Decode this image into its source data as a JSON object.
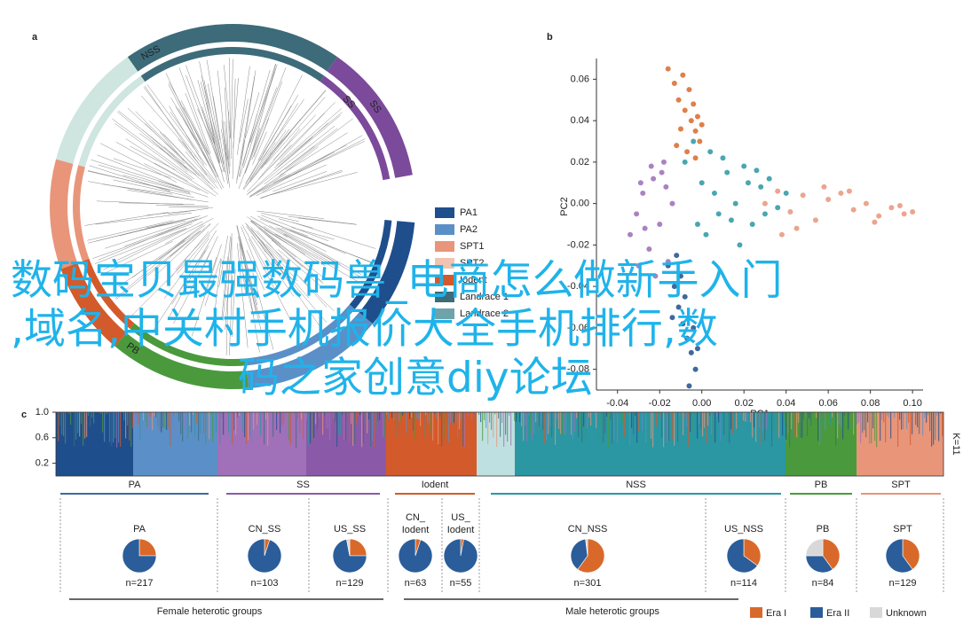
{
  "panel_a": {
    "letter": "a",
    "ring_labels": [
      "NSS",
      "SS",
      "SS",
      "PB"
    ],
    "legend": [
      {
        "label": "PA1",
        "color": "#1f4e8c"
      },
      {
        "label": "PA2",
        "color": "#5b8fc7"
      },
      {
        "label": "SPT1",
        "color": "#e8957a"
      },
      {
        "label": "SPT2",
        "color": "#f2c3b1"
      },
      {
        "label": "Iodent",
        "color": "#d35a2a"
      },
      {
        "label": "Landrace 1",
        "color": "#3d6b7a"
      },
      {
        "label": "Landrace 2",
        "color": "#6fa3ac"
      }
    ]
  },
  "panel_b": {
    "letter": "b"
  },
  "chart_data": [
    {
      "type": "scatter",
      "x_label": "PC1",
      "y_label": "PC2",
      "xlim": [
        -0.05,
        0.105
      ],
      "ylim": [
        -0.09,
        0.07
      ],
      "xticks": [
        {
          "value": -0.04,
          "label": "-0.04"
        },
        {
          "value": -0.02,
          "label": "-0.02"
        },
        {
          "value": 0,
          "label": "0.00"
        },
        {
          "value": 0.02,
          "label": "0.02"
        },
        {
          "value": 0.04,
          "label": "0.04"
        },
        {
          "value": 0.06,
          "label": "0.06"
        },
        {
          "value": 0.08,
          "label": "0.08"
        },
        {
          "value": 0.1,
          "label": "0.10"
        }
      ],
      "yticks": [
        {
          "value": -0.08,
          "label": "-0.08"
        },
        {
          "value": -0.06,
          "label": "-0.06"
        },
        {
          "value": -0.04,
          "label": "-0.04"
        },
        {
          "value": -0.02,
          "label": "-0.02"
        },
        {
          "value": 0,
          "label": "0.00"
        },
        {
          "value": 0.02,
          "label": "0.02"
        },
        {
          "value": 0.04,
          "label": "0.04"
        },
        {
          "value": 0.06,
          "label": "0.06"
        }
      ],
      "series": [
        {
          "color": "#d9692a",
          "x": [
            -0.016,
            -0.013,
            -0.011,
            -0.009,
            -0.008,
            -0.006,
            -0.005,
            -0.004,
            -0.003,
            -0.002,
            -0.001,
            0.0,
            -0.012,
            -0.007,
            -0.01,
            -0.003
          ],
          "values": [
            0.065,
            0.058,
            0.05,
            0.062,
            0.045,
            0.055,
            0.04,
            0.048,
            0.035,
            0.042,
            0.03,
            0.038,
            0.028,
            0.025,
            0.036,
            0.022
          ]
        },
        {
          "color": "#9b6cb8",
          "x": [
            -0.034,
            -0.031,
            -0.028,
            -0.025,
            -0.023,
            -0.02,
            -0.018,
            -0.016,
            -0.014,
            -0.03,
            -0.022,
            -0.019,
            -0.027,
            -0.017,
            -0.024,
            -0.029
          ],
          "values": [
            -0.015,
            -0.005,
            0.005,
            -0.022,
            0.012,
            -0.01,
            0.02,
            -0.028,
            0.0,
            -0.03,
            -0.035,
            0.015,
            -0.012,
            0.008,
            0.018,
            0.01
          ]
        },
        {
          "color": "#2a97a3",
          "x": [
            -0.008,
            -0.004,
            0.0,
            0.004,
            0.008,
            0.012,
            0.016,
            0.02,
            0.024,
            0.028,
            0.032,
            0.036,
            0.04,
            0.002,
            0.01,
            0.018,
            0.026,
            0.006,
            0.014,
            -0.002,
            0.022,
            0.03
          ],
          "values": [
            0.02,
            0.03,
            0.01,
            0.025,
            -0.005,
            0.015,
            0.0,
            0.018,
            -0.01,
            0.008,
            0.012,
            -0.002,
            0.005,
            -0.015,
            0.022,
            -0.02,
            0.016,
            0.005,
            -0.008,
            -0.01,
            0.01,
            -0.005
          ]
        },
        {
          "color": "#e8957a",
          "x": [
            0.03,
            0.036,
            0.042,
            0.048,
            0.054,
            0.06,
            0.066,
            0.072,
            0.078,
            0.084,
            0.09,
            0.096,
            0.1,
            0.045,
            0.058,
            0.07,
            0.082,
            0.038,
            0.094
          ],
          "values": [
            0.0,
            0.006,
            -0.004,
            0.004,
            -0.008,
            0.002,
            0.005,
            -0.003,
            0.0,
            -0.006,
            -0.002,
            -0.005,
            -0.004,
            -0.012,
            0.008,
            0.006,
            -0.009,
            -0.015,
            -0.001
          ]
        },
        {
          "color": "#1f4e8c",
          "x": [
            -0.016,
            -0.013,
            -0.011,
            -0.009,
            -0.007,
            -0.005,
            -0.003,
            -0.012,
            -0.008,
            -0.006,
            -0.004,
            -0.01,
            -0.002,
            -0.014
          ],
          "values": [
            -0.03,
            -0.04,
            -0.05,
            -0.058,
            -0.065,
            -0.072,
            -0.08,
            -0.025,
            -0.045,
            -0.088,
            -0.06,
            -0.035,
            -0.07,
            -0.055
          ]
        }
      ]
    },
    {
      "type": "pie",
      "title": [
        "PA"
      ],
      "note": "n=217",
      "values": [
        25,
        75,
        0
      ]
    },
    {
      "type": "pie",
      "title": [
        "CN_SS"
      ],
      "note": "n=103",
      "values": [
        5,
        95,
        0
      ]
    },
    {
      "type": "pie",
      "title": [
        "US_SS"
      ],
      "note": "n=129",
      "values": [
        25,
        72,
        3
      ]
    },
    {
      "type": "pie",
      "title": [
        "CN_",
        "Iodent"
      ],
      "note": "n=63",
      "values": [
        5,
        95,
        0
      ]
    },
    {
      "type": "pie",
      "title": [
        "US_",
        "Iodent"
      ],
      "note": "n=55",
      "values": [
        3,
        97,
        0
      ]
    },
    {
      "type": "pie",
      "title": [
        "CN_NSS"
      ],
      "note": "n=301",
      "values": [
        60,
        38,
        2
      ]
    },
    {
      "type": "pie",
      "title": [
        "US_NSS"
      ],
      "note": "n=114",
      "values": [
        35,
        65,
        0
      ]
    },
    {
      "type": "pie",
      "title": [
        "PB"
      ],
      "note": "n=84",
      "values": [
        40,
        35,
        25
      ]
    },
    {
      "type": "pie",
      "title": [
        "SPT"
      ],
      "note": "n=129",
      "values": [
        40,
        60,
        0
      ]
    }
  ],
  "panel_c": {
    "letter": "c",
    "yticks": [
      {
        "value": 0.2,
        "label": "0.2"
      },
      {
        "value": 0.6,
        "label": "0.6"
      },
      {
        "value": 1.0,
        "label": "1.0"
      }
    ],
    "k_label": "K=11",
    "groups": [
      {
        "label": "PA",
        "color": "#3d6b9a"
      },
      {
        "label": "SS",
        "color": "#8a5aa8"
      },
      {
        "label": "Iodent",
        "color": "#d35a2a"
      },
      {
        "label": "NSS",
        "color": "#2a97a3"
      },
      {
        "label": "PB",
        "color": "#4a9a3d"
      },
      {
        "label": "SPT",
        "color": "#e8957a"
      }
    ],
    "female": "Female heterotic groups",
    "male": "Male heterotic groups",
    "legend": [
      {
        "label": "Era I",
        "color": "#d9692a"
      },
      {
        "label": "Era II",
        "color": "#2a5d9a"
      },
      {
        "label": "Unknown",
        "color": "#d8d8d8"
      }
    ]
  },
  "overlay": [
    "数码宝贝最强数码兽_电商怎么做新手入门",
    ",域名,中关村手机报价大全手机排行,数",
    "码之家创意diy论坛"
  ]
}
